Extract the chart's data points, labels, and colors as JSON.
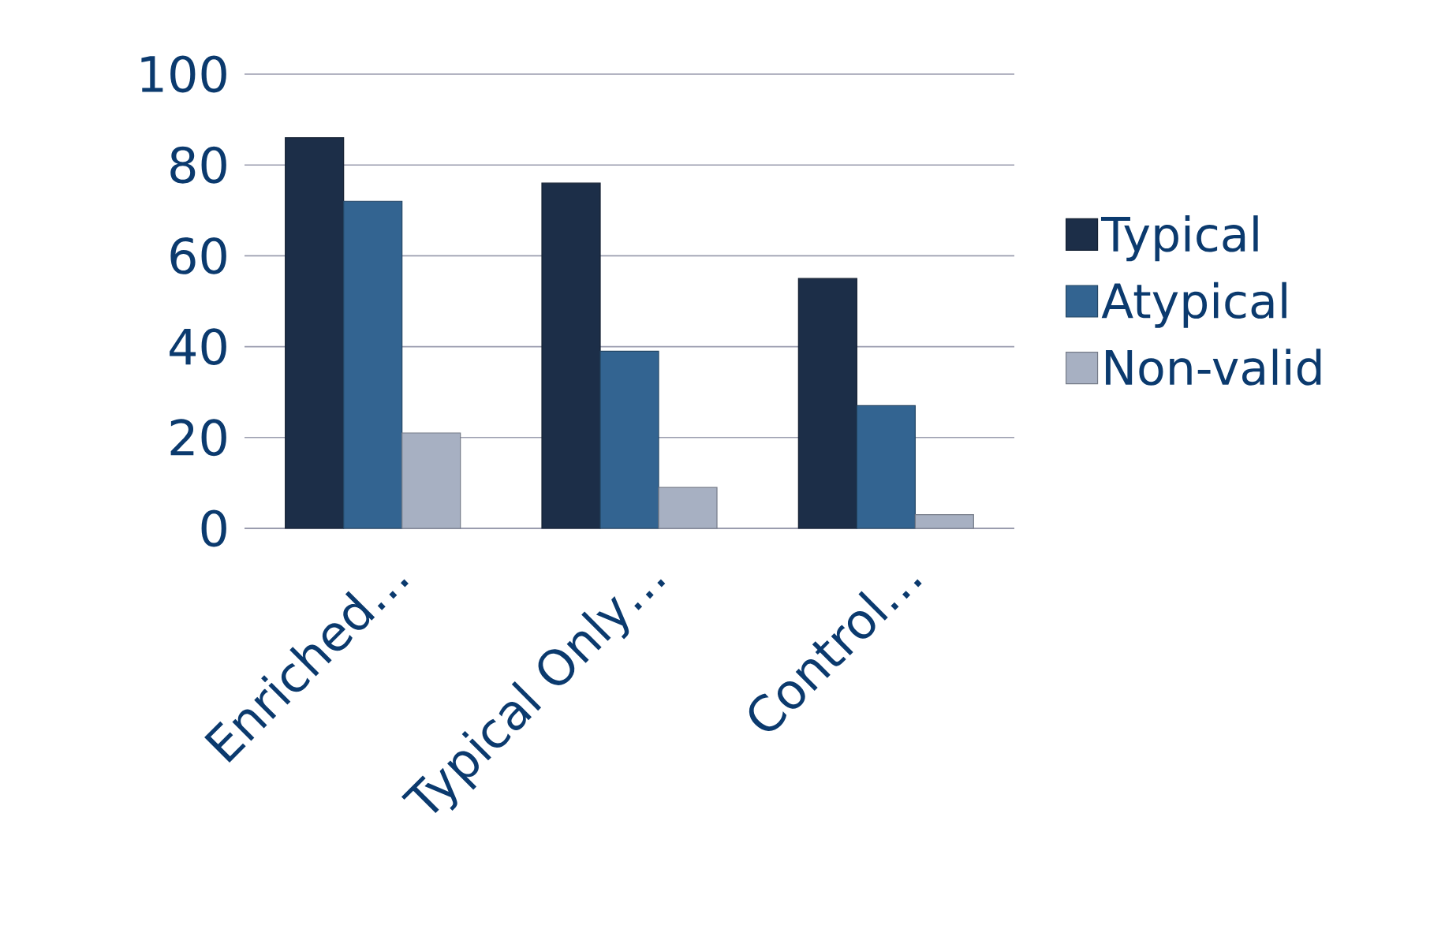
{
  "chart_data": {
    "type": "bar",
    "categories": [
      "Enriched…",
      "Typical Only…",
      "Control…"
    ],
    "series": [
      {
        "name": "Typical",
        "color": "#1c2e48",
        "values": [
          86,
          76,
          55
        ]
      },
      {
        "name": "Atypical",
        "color": "#336491",
        "values": [
          72,
          39,
          27
        ]
      },
      {
        "name": "Non-valid",
        "color": "#a7b0c2",
        "values": [
          21,
          9,
          3
        ]
      }
    ],
    "ylim": [
      0,
      100
    ],
    "yticks": [
      0,
      20,
      40,
      60,
      80,
      100
    ],
    "grid": "y",
    "legend": "right"
  }
}
